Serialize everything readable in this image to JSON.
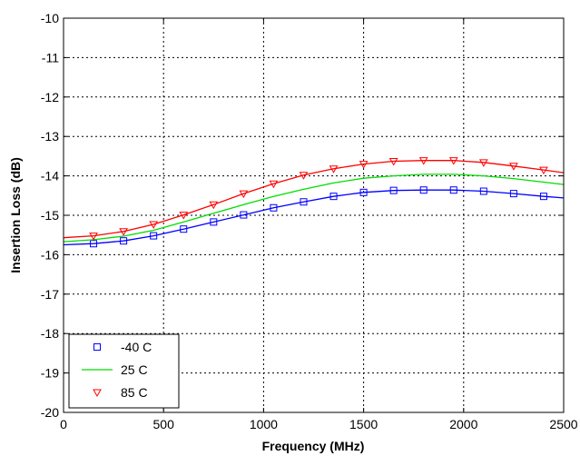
{
  "chart_data": {
    "type": "line",
    "title": "",
    "xlabel": "Frequency (MHz)",
    "ylabel": "Insertion Loss (dB)",
    "xlim": [
      0,
      2500
    ],
    "ylim": [
      -20,
      -10
    ],
    "x_ticks": [
      0,
      500,
      1000,
      1500,
      2000,
      2500
    ],
    "y_ticks": [
      -10,
      -11,
      -12,
      -13,
      -14,
      -15,
      -16,
      -17,
      -18,
      -19,
      -20
    ],
    "grid": true,
    "legend_position": "bottom-left",
    "series": [
      {
        "name": "-40 C",
        "color": "#0000ff",
        "marker": "square",
        "x": [
          0,
          150,
          300,
          450,
          600,
          750,
          900,
          1050,
          1200,
          1350,
          1500,
          1650,
          1800,
          1950,
          2100,
          2250,
          2400,
          2500
        ],
        "y": [
          -15.75,
          -15.72,
          -15.65,
          -15.52,
          -15.35,
          -15.17,
          -14.99,
          -14.81,
          -14.66,
          -14.52,
          -14.42,
          -14.37,
          -14.36,
          -14.36,
          -14.39,
          -14.45,
          -14.52,
          -14.56
        ]
      },
      {
        "name": "25 C",
        "color": "#00dd00",
        "marker": "none",
        "x": [
          0,
          150,
          300,
          450,
          600,
          750,
          900,
          1050,
          1200,
          1350,
          1500,
          1650,
          1800,
          1950,
          2100,
          2250,
          2400,
          2500
        ],
        "y": [
          -15.67,
          -15.62,
          -15.53,
          -15.38,
          -15.17,
          -14.95,
          -14.73,
          -14.52,
          -14.34,
          -14.18,
          -14.06,
          -14.0,
          -13.96,
          -13.96,
          -14.0,
          -14.07,
          -14.16,
          -14.22
        ]
      },
      {
        "name": "85 C",
        "color": "#ff0000",
        "marker": "triangle-down",
        "x": [
          0,
          150,
          300,
          450,
          600,
          750,
          900,
          1050,
          1200,
          1350,
          1500,
          1650,
          1800,
          1950,
          2100,
          2250,
          2400,
          2500
        ],
        "y": [
          -15.57,
          -15.52,
          -15.41,
          -15.23,
          -14.99,
          -14.73,
          -14.45,
          -14.2,
          -13.98,
          -13.82,
          -13.7,
          -13.63,
          -13.61,
          -13.61,
          -13.66,
          -13.75,
          -13.85,
          -13.92
        ]
      }
    ]
  }
}
